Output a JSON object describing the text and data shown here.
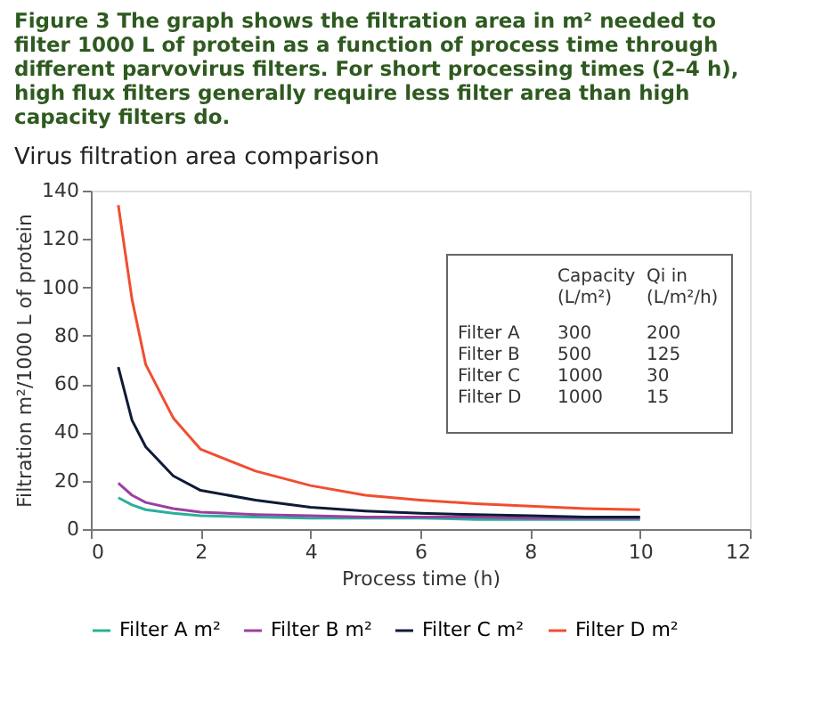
{
  "chart_data": {
    "type": "line",
    "title": "Virus filtration area comparison",
    "xlabel": "Process time (h)",
    "ylabel": "Filtration m²/1000 L of protein",
    "x": [
      0.5,
      0.75,
      1,
      1.5,
      2,
      3,
      4,
      5,
      6,
      7,
      8,
      9,
      10
    ],
    "series": [
      {
        "name": "Filter A m²",
        "color": "#2ab09a",
        "values": [
          13,
          10,
          8,
          6.5,
          5.5,
          5,
          4.5,
          4.5,
          4.5,
          4,
          4,
          4,
          4
        ]
      },
      {
        "name": "Filter B m²",
        "color": "#9b3fa0",
        "values": [
          19,
          14,
          11,
          8.5,
          7,
          6,
          5.5,
          5,
          5,
          5,
          4.5,
          4.5,
          4.5
        ]
      },
      {
        "name": "Filter C m²",
        "color": "#0d1b36",
        "values": [
          67,
          45,
          34,
          22,
          16,
          12,
          9,
          7.5,
          6.5,
          6,
          5.5,
          5,
          5
        ]
      },
      {
        "name": "Filter D m²",
        "color": "#f04e30",
        "values": [
          134,
          95,
          68,
          46,
          33,
          24,
          18,
          14,
          12,
          10.5,
          9.5,
          8.5,
          8
        ]
      }
    ],
    "xlim": [
      0,
      12
    ],
    "xticks": [
      0,
      2,
      4,
      6,
      8,
      10,
      12
    ],
    "ylim": [
      0,
      140
    ],
    "yticks": [
      0,
      20,
      40,
      60,
      80,
      100,
      120,
      140
    ],
    "grid": false,
    "legend": "bottom",
    "marker": "none",
    "line_style": "solid",
    "annotations": [
      "Figure 3 The graph shows the filtration area in m² needed to filter 1000 L of protein as a function of process time through different parvovirus filters. For short processing times (2–4 h), high flux filters generally require less filter area than high capacity filters do.",
      "Capacity (L/m²)",
      "Qi in (L/m²/h)",
      "Filter A",
      "300",
      "200",
      "Filter B",
      "500",
      "125",
      "Filter C",
      "1000",
      "30",
      "Filter D",
      "1000",
      "15"
    ]
  }
}
